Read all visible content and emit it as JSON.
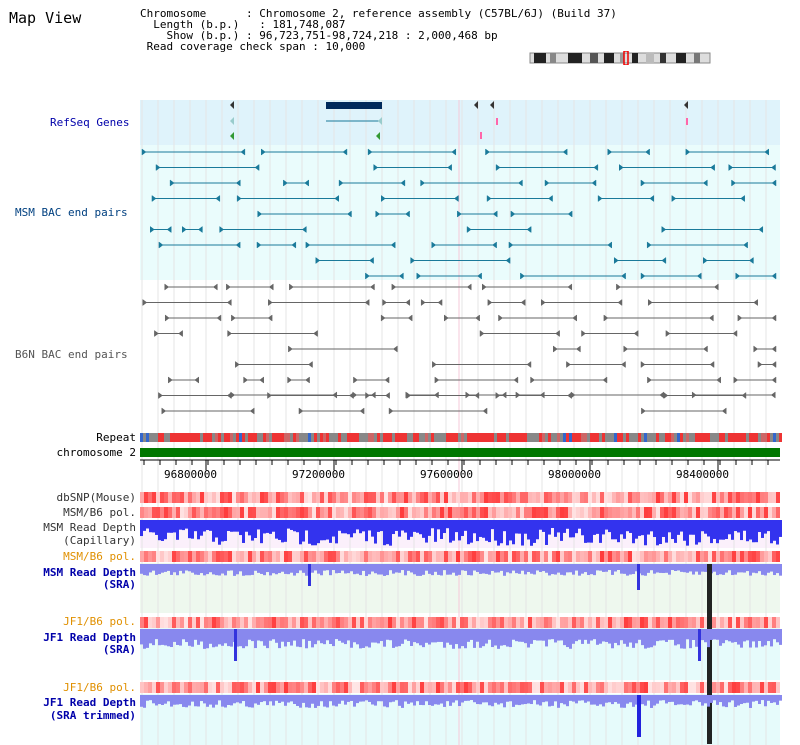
{
  "title": "Map View",
  "info": {
    "chromosome_label": "Chromosome    ",
    "chromosome_value": "Chromosome 2, reference assembly (C57BL/6J) (Build 37)",
    "length_label": "Length (b.p.)",
    "length_value": "181,748,087",
    "show_label": "Show (b.p.)",
    "show_value": "96,723,751-98,724,218 : 2,000,468 bp",
    "coverage_label": "Read coverage check span",
    "coverage_value": "10,000"
  },
  "tracks": {
    "refseq": "RefSeq Genes",
    "msm_bac": "MSM BAC end pairs",
    "b6n_bac": "B6N BAC end pairs",
    "repeat": "Repeat",
    "chromosome": "chromosome 2",
    "dbsnp": "dbSNP(Mouse)",
    "msm_b6_pol_1": "MSM/B6 pol.",
    "msm_depth_cap_1": "MSM Read Depth",
    "msm_depth_cap_2": "(Capillary)",
    "msm_b6_pol_2": "MSM/B6 pol.",
    "msm_depth_sra_1": "MSM Read Depth",
    "msm_depth_sra_2": "(SRA)",
    "jf1_b6_pol_1": "JF1/B6 pol.",
    "jf1_depth_sra_1": "JF1 Read Depth",
    "jf1_depth_sra_2": "(SRA)",
    "jf1_b6_pol_2": "JF1/B6 pol.",
    "jf1_depth_trim_1": "JF1 Read Depth",
    "jf1_depth_trim_2": "(SRA trimmed)"
  },
  "axis": {
    "ticks": [
      "96800000",
      "97200000",
      "97600000",
      "98000000",
      "98400000"
    ]
  },
  "colors": {
    "track_label_blue": "#0000aa",
    "track_label_teal": "#004080",
    "pol_orange": "#e09000",
    "refseq_bg": "#dff3fb",
    "msm_bac_bg": "#eafcfc",
    "gene_dark": "#002a5c",
    "bac_teal": "#1a7a9a",
    "bac_grey": "#666666",
    "chromosome_green": "#007700",
    "depth_blue": "#3333dd",
    "depth_light": "#8888ee"
  }
}
